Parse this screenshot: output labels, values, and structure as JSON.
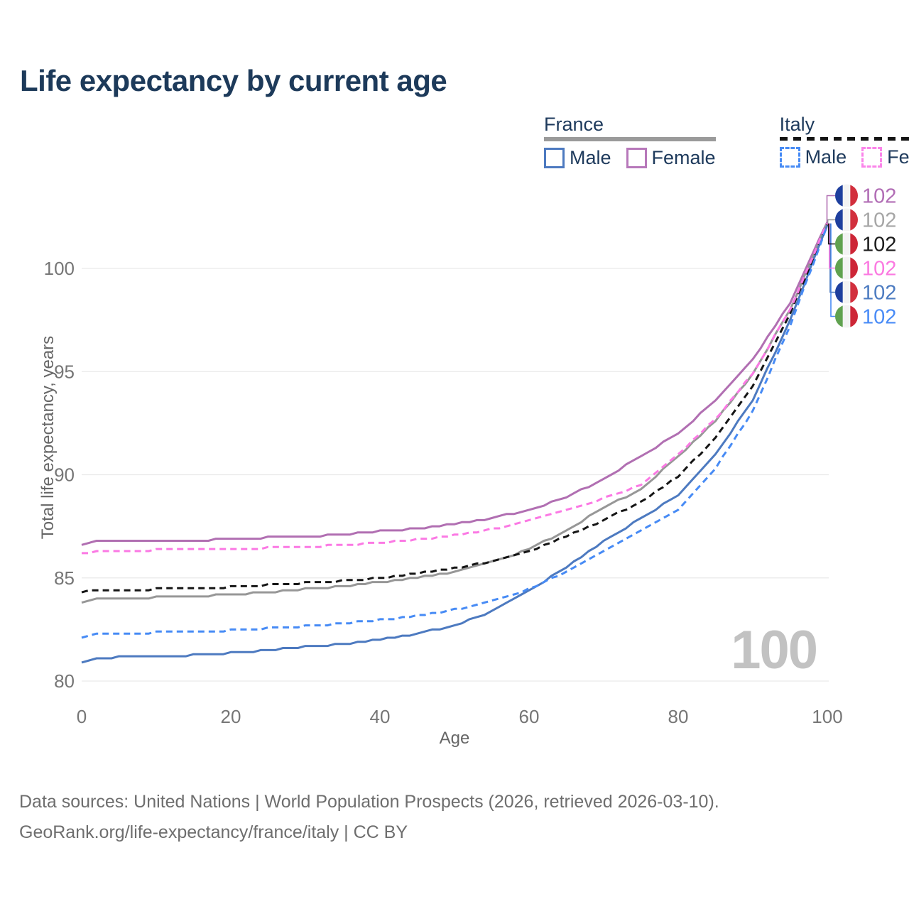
{
  "title": "Life expectancy by current age",
  "legend": {
    "groups": [
      {
        "label": "France",
        "line_style": "solid",
        "line_color": "#9a9a9a",
        "items": [
          {
            "label": "Male",
            "color": "#4d7ac0",
            "dashed": false
          },
          {
            "label": "Female",
            "color": "#b778ba",
            "dashed": false
          }
        ]
      },
      {
        "label": "Italy",
        "line_style": "dashed",
        "line_color": "#141414",
        "items": [
          {
            "label": "Male",
            "color": "#478bf5",
            "dashed": true
          },
          {
            "label": "Female",
            "color": "#fb85ea",
            "dashed": true
          }
        ]
      }
    ]
  },
  "watermark": "100",
  "footer": {
    "line1": "Data sources: United Nations | World Population Prospects (2026, retrieved 2026-03-10).",
    "line2": "GeoRank.org/life-expectancy/france/italy | CC BY"
  },
  "flag_colors": {
    "france": [
      "#1e3f9e",
      "#f3f3f3",
      "#d22f3d"
    ],
    "italy": [
      "#60a24f",
      "#f3f3f3",
      "#cd2637"
    ]
  },
  "chart_data": {
    "type": "line",
    "title": "Life expectancy by current age",
    "xlabel": "Age",
    "ylabel": "Total life expectancy, years",
    "xlim": [
      0,
      100
    ],
    "ylim": [
      79.5,
      102.9
    ],
    "xticks": [
      0,
      20,
      40,
      60,
      80,
      100
    ],
    "yticks": [
      80,
      85,
      90,
      95,
      100
    ],
    "grid": "horizontal-only",
    "grid_color": "#e9e9e9",
    "tick_color": "#767676",
    "legend_position": "top-right",
    "x": [
      0,
      2,
      5,
      10,
      15,
      20,
      25,
      30,
      35,
      40,
      45,
      50,
      55,
      60,
      65,
      70,
      75,
      80,
      85,
      90,
      95,
      100
    ],
    "series": [
      {
        "name": "France Female",
        "country": "France",
        "sex": "Female",
        "flag": "france",
        "color": "#b16fb2",
        "dashed": false,
        "end_label": "102",
        "label_color": "#b16db5",
        "label_order": 0,
        "values": [
          86.6,
          86.75,
          86.75,
          86.8,
          86.8,
          86.9,
          86.95,
          87.0,
          87.1,
          87.25,
          87.4,
          87.6,
          87.9,
          88.3,
          88.9,
          89.8,
          90.9,
          92.0,
          93.6,
          95.6,
          98.3,
          102.25
        ]
      },
      {
        "name": "France",
        "country": "France",
        "sex": "Both",
        "flag": "france",
        "color": "#979797",
        "dashed": false,
        "end_label": "102",
        "label_color": "#a6a6a6",
        "label_order": 1,
        "values": [
          83.8,
          84.0,
          84.0,
          84.05,
          84.1,
          84.2,
          84.3,
          84.45,
          84.6,
          84.8,
          85.0,
          85.3,
          85.75,
          86.4,
          87.3,
          88.4,
          89.3,
          90.9,
          92.6,
          94.9,
          98.0,
          102.2
        ]
      },
      {
        "name": "Italy",
        "country": "Italy",
        "sex": "Both",
        "flag": "italy",
        "color": "#151515",
        "dashed": true,
        "end_label": "102",
        "label_color": "#1c1c1c",
        "label_order": 2,
        "values": [
          84.3,
          84.4,
          84.4,
          84.45,
          84.5,
          84.55,
          84.65,
          84.75,
          84.85,
          85.0,
          85.2,
          85.45,
          85.8,
          86.25,
          87.0,
          87.8,
          88.7,
          89.9,
          91.8,
          94.3,
          97.8,
          102.15
        ]
      },
      {
        "name": "Italy Female",
        "country": "Italy",
        "sex": "Female",
        "flag": "italy",
        "color": "#fb79e4",
        "dashed": true,
        "end_label": "102",
        "label_color": "#fb7ae1",
        "label_order": 3,
        "values": [
          86.15,
          86.3,
          86.3,
          86.35,
          86.35,
          86.4,
          86.45,
          86.5,
          86.6,
          86.7,
          86.85,
          87.05,
          87.35,
          87.75,
          88.3,
          88.85,
          89.5,
          91.0,
          92.7,
          94.9,
          98.0,
          102.2
        ]
      },
      {
        "name": "France Male",
        "country": "France",
        "sex": "Male",
        "flag": "france",
        "color": "#4d7ac0",
        "dashed": false,
        "end_label": "102",
        "label_color": "#4d7cc1",
        "label_order": 4,
        "values": [
          80.9,
          81.1,
          81.15,
          81.2,
          81.25,
          81.35,
          81.5,
          81.65,
          81.8,
          82.0,
          82.3,
          82.7,
          83.35,
          84.4,
          85.5,
          86.75,
          87.9,
          89.0,
          91.0,
          93.6,
          97.5,
          102.1
        ]
      },
      {
        "name": "Italy Male",
        "country": "Italy",
        "sex": "Male",
        "flag": "italy",
        "color": "#478bf5",
        "dashed": true,
        "end_label": "102",
        "label_color": "#4a8cf7",
        "label_order": 5,
        "values": [
          82.1,
          82.3,
          82.3,
          82.35,
          82.4,
          82.45,
          82.55,
          82.65,
          82.8,
          82.95,
          83.15,
          83.45,
          83.85,
          84.45,
          85.3,
          86.3,
          87.3,
          88.3,
          90.3,
          93.1,
          97.2,
          102.1
        ]
      }
    ]
  }
}
